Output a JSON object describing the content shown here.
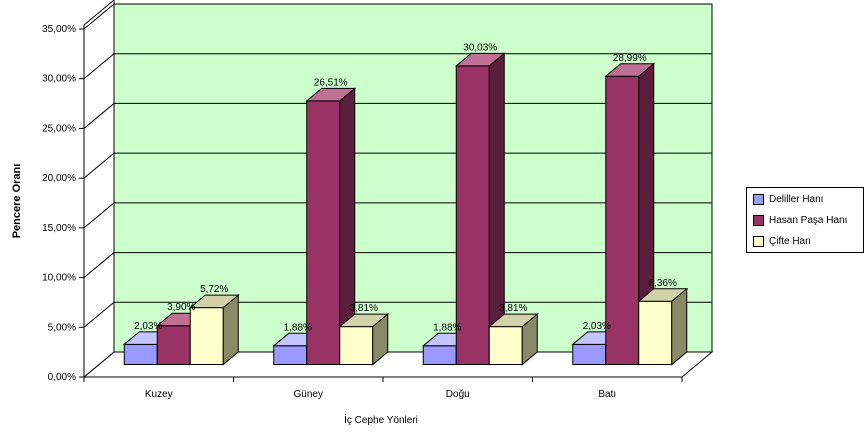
{
  "chart_data": {
    "type": "bar",
    "style": "3d-clustered-column",
    "categories": [
      "Kuzey",
      "Güney",
      "Doğu",
      "Batı"
    ],
    "series": [
      {
        "name": "Deliller Hanı",
        "values": [
          2.03,
          1.88,
          1.88,
          2.03
        ],
        "labels": [
          "2,03%",
          "1,88%",
          "1,88%",
          "2,03%"
        ],
        "color": "#9999FF",
        "side": "#5E5EB0",
        "top": "#C4C4FF"
      },
      {
        "name": "Hasan Paşa Hanı",
        "values": [
          3.9,
          26.51,
          30.03,
          28.99
        ],
        "labels": [
          "3,90%",
          "26,51%",
          "30,03%",
          "28,99%"
        ],
        "color": "#993366",
        "side": "#5C1E3D",
        "top": "#C07095"
      },
      {
        "name": "Çifte Han",
        "values": [
          5.72,
          3.81,
          3.81,
          6.36
        ],
        "labels": [
          "5,72%",
          "3,81%",
          "3,81%",
          "6,36%"
        ],
        "color": "#FFFFCC",
        "side": "#8A8A68",
        "top": "#D2D2A8"
      }
    ],
    "yticks": [
      "0,00%",
      "5,00%",
      "10,00%",
      "15,00%",
      "20,00%",
      "25,00%",
      "30,00%",
      "35,00%"
    ],
    "ylim": [
      0,
      35
    ],
    "ylabel": "Pencere Oranı",
    "xlabel": "İç Cephe Yönleri",
    "grid": true,
    "legend": "right",
    "wall_color": "#CCFFCC",
    "floor_color": "#FFFFFF"
  }
}
